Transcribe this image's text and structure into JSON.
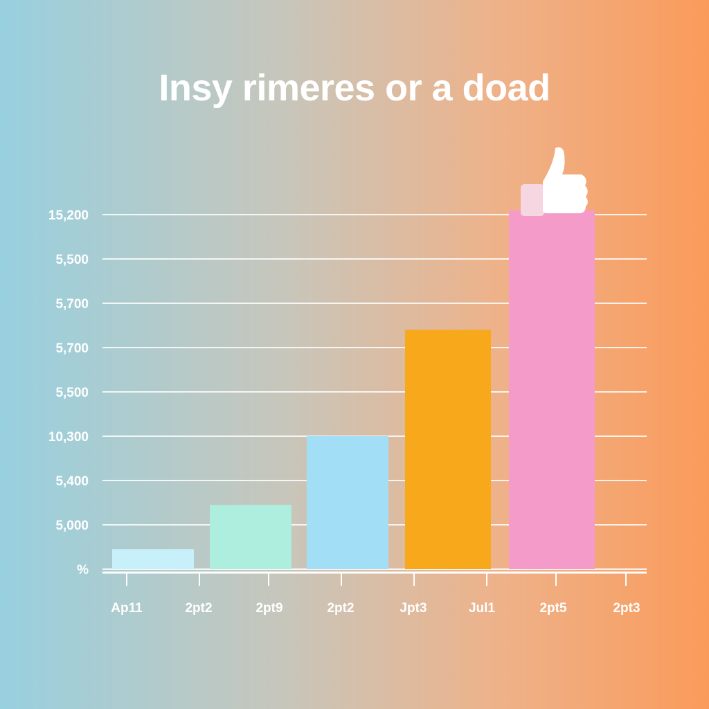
{
  "chart_data": {
    "type": "bar",
    "title": "Insy rimeres or a doad",
    "xlabel": "",
    "ylabel": "",
    "y_tick_labels": [
      "%",
      "5,000",
      "5,400",
      "10,300",
      "5,500",
      "5,700",
      "5,700",
      "5,500",
      "15,200"
    ],
    "x_tick_labels": [
      "Ap11",
      "2pt2",
      "2pt9",
      "2pt2",
      "Jpt3",
      "Jul1",
      "2pt5",
      "2pt3"
    ],
    "ylim": [
      0,
      8
    ],
    "bars": [
      {
        "value": 0.45,
        "color": "#c7f0fb"
      },
      {
        "value": 1.45,
        "color": "#aeeede"
      },
      {
        "value": 3.0,
        "color": "#a2dff6"
      },
      {
        "value": 5.4,
        "color": "#f7a81b"
      },
      {
        "value": 8.1,
        "color": "#f59bc9"
      }
    ],
    "grid": true,
    "annotation_icon": "thumbs-up-icon"
  }
}
